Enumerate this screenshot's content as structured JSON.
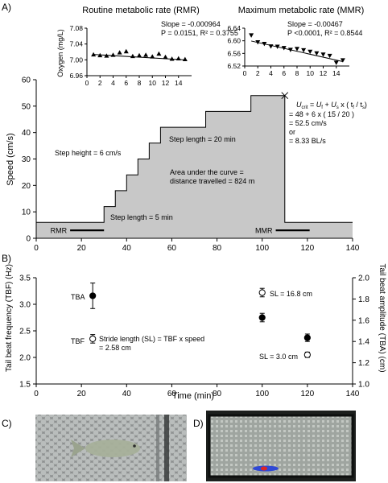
{
  "panels": {
    "a": "A)",
    "b": "B)",
    "c": "C)",
    "d": "D)"
  },
  "chart_data": [
    {
      "type": "scatter",
      "id": "rmr",
      "title": "Routine metabolic rate (RMR)",
      "ylabel": "Oxygen (mg/L)",
      "xlim": [
        0,
        16
      ],
      "xticks": [
        0,
        2,
        4,
        6,
        8,
        10,
        12,
        14
      ],
      "ylim": [
        6.96,
        7.08
      ],
      "yticks": [
        "6.96",
        "7.00",
        "7.04",
        "7.08"
      ],
      "annotations": [
        "Slope = -0.000964",
        "P = 0.0151, R² = 0.3755"
      ],
      "marker": "triangle-up",
      "x": [
        1,
        2,
        3,
        4,
        5,
        6,
        7,
        8,
        9,
        10,
        11,
        12,
        13,
        14,
        15
      ],
      "y": [
        7.013,
        7.011,
        7.01,
        7.012,
        7.018,
        7.021,
        7.009,
        7.011,
        7.012,
        7.008,
        7.015,
        7.007,
        7.002,
        7.003,
        7.001
      ],
      "trend": {
        "slope": -0.000964,
        "intercept": 7.0145
      }
    },
    {
      "type": "scatter",
      "id": "mmr",
      "title": "Maximum metabolic rate (MMR)",
      "xlim": [
        0,
        16
      ],
      "xticks": [
        0,
        2,
        4,
        6,
        8,
        10,
        12,
        14
      ],
      "ylim": [
        6.52,
        6.64
      ],
      "yticks": [
        "6.52",
        "6.56",
        "6.60",
        "6.64"
      ],
      "annotations": [
        "Slope = -0.00467",
        "P <0.0001, R² = 0.8544"
      ],
      "marker": "triangle-down",
      "x": [
        1,
        2,
        3,
        4,
        5,
        6,
        7,
        8,
        9,
        10,
        11,
        12,
        13,
        14,
        15
      ],
      "y": [
        6.618,
        6.596,
        6.591,
        6.583,
        6.582,
        6.578,
        6.572,
        6.575,
        6.571,
        6.566,
        6.561,
        6.557,
        6.553,
        6.531,
        6.539
      ],
      "trend": {
        "slope": -0.00467,
        "intercept": 6.604
      }
    },
    {
      "type": "area",
      "id": "speed",
      "ylabel": "Speed (cm/s)",
      "xlim": [
        0,
        140
      ],
      "xticks": [
        0,
        20,
        40,
        60,
        80,
        100,
        120,
        140
      ],
      "ylim": [
        0,
        60
      ],
      "yticks": [
        0,
        10,
        20,
        30,
        40,
        50,
        60
      ],
      "profile": [
        [
          0,
          6
        ],
        [
          30,
          6
        ],
        [
          30,
          12
        ],
        [
          35,
          12
        ],
        [
          35,
          18
        ],
        [
          40,
          18
        ],
        [
          40,
          24
        ],
        [
          45,
          24
        ],
        [
          45,
          30
        ],
        [
          50,
          30
        ],
        [
          50,
          36
        ],
        [
          55,
          36
        ],
        [
          55,
          42
        ],
        [
          75,
          42
        ],
        [
          75,
          48
        ],
        [
          95,
          48
        ],
        [
          95,
          54
        ],
        [
          110,
          54
        ],
        [
          110,
          6
        ],
        [
          140,
          6
        ]
      ],
      "bars": [
        {
          "label": "RMR",
          "x": [
            15,
            30
          ],
          "y": 3
        },
        {
          "label": "MMR",
          "x": [
            106,
            121
          ],
          "y": 3
        }
      ],
      "marker_point": [
        110,
        54
      ],
      "annotations": {
        "step_height": "Step height = 6 cm/s",
        "step_length_20": "Step length = 20 min",
        "area_1": "Area under the curve =",
        "area_2": "distance travelled = 824 m",
        "step_length_5": "Step length = 5 min",
        "ucrit_1": "= 48 + 6 x ( 15 / 20 )",
        "ucrit_2": "= 52.5 cm/s",
        "ucrit_3": "or",
        "ucrit_4": "= 8.33 BL/s"
      }
    },
    {
      "type": "scatter",
      "id": "tail-beat",
      "xlabel": "Time (min)",
      "ylabel_left": "Tail beat frequency (TBF) (Hz)",
      "ylabel_right": "Tail beat amplitude (TBA) (cm)",
      "xlim": [
        0,
        140
      ],
      "xticks": [
        0,
        20,
        40,
        60,
        80,
        100,
        120,
        140
      ],
      "ylim_left": [
        1.5,
        3.5
      ],
      "yticks_left": [
        "1.5",
        "2.0",
        "2.5",
        "3.0",
        "3.5"
      ],
      "ylim_right": [
        1.0,
        2.0
      ],
      "yticks_right": [
        "1.0",
        "1.2",
        "1.4",
        "1.6",
        "1.8",
        "2.0"
      ],
      "series": [
        {
          "name": "TBA",
          "marker": "filled-circle",
          "x": [
            25,
            100,
            120
          ],
          "y": [
            3.16,
            2.75,
            2.37
          ],
          "err": [
            0.24,
            0.08,
            0.07
          ]
        },
        {
          "name": "TBF",
          "marker": "open-circle",
          "x": [
            25,
            100,
            120
          ],
          "y": [
            2.35,
            3.22,
            2.05
          ],
          "err": [
            0.08,
            0.08,
            0.05
          ]
        }
      ],
      "annotations": {
        "sl_168": "SL = 16.8 cm",
        "sl_30": "SL =  3.0 cm",
        "stride_1": "Stride length (SL) = TBF x speed",
        "stride_2": "= 2.58 cm"
      }
    }
  ]
}
